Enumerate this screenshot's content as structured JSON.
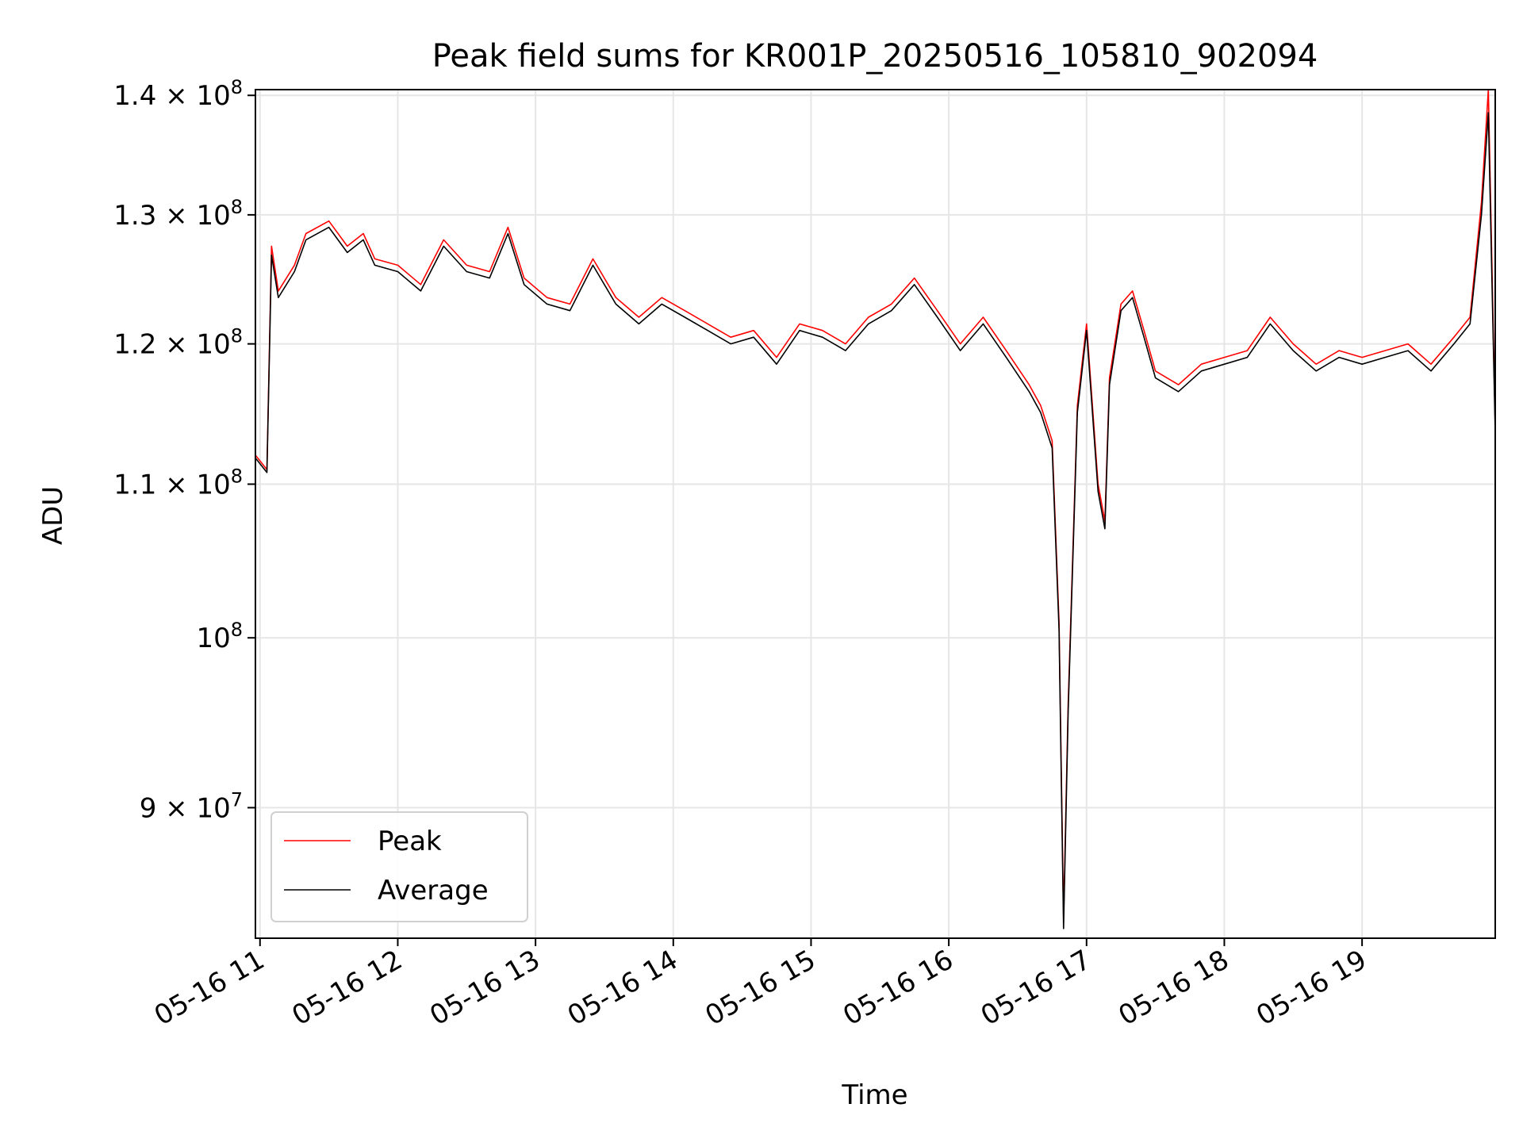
{
  "chart_data": {
    "type": "line",
    "title": "Peak field sums for KR001P_20250516_105810_902094",
    "xlabel": "Time",
    "ylabel": "ADU",
    "yscale": "log",
    "xlim": [
      "2025-05-16T10:58:00",
      "2025-05-16T19:58:00"
    ],
    "ylim": [
      83000000,
      140500000
    ],
    "x_ticks": [
      "05-16 11",
      "05-16 12",
      "05-16 13",
      "05-16 14",
      "05-16 15",
      "05-16 16",
      "05-16 17",
      "05-16 18",
      "05-16 19"
    ],
    "y_ticks": [
      {
        "value": 90000000,
        "mant": "9",
        "sep": " × ",
        "exp": "7"
      },
      {
        "value": 100000000,
        "mant": "",
        "sep": "",
        "exp": "8"
      },
      {
        "value": 110000000,
        "mant": "1.1",
        "sep": " × ",
        "exp": "8"
      },
      {
        "value": 120000000,
        "mant": "1.2",
        "sep": " × ",
        "exp": "8"
      },
      {
        "value": 130000000,
        "mant": "1.3",
        "sep": " × ",
        "exp": "8"
      },
      {
        "value": 140000000,
        "mant": "1.4",
        "sep": " × ",
        "exp": "8"
      }
    ],
    "grid": true,
    "legend_position": "lower-left",
    "series": [
      {
        "name": "Peak",
        "color": "#ff0000",
        "x": [
          "2025-05-16T10:58:00",
          "2025-05-16T11:03:00",
          "2025-05-16T11:05:00",
          "2025-05-16T11:08:00",
          "2025-05-16T11:15:00",
          "2025-05-16T11:20:00",
          "2025-05-16T11:30:00",
          "2025-05-16T11:38:00",
          "2025-05-16T11:45:00",
          "2025-05-16T11:50:00",
          "2025-05-16T12:00:00",
          "2025-05-16T12:10:00",
          "2025-05-16T12:20:00",
          "2025-05-16T12:30:00",
          "2025-05-16T12:40:00",
          "2025-05-16T12:48:00",
          "2025-05-16T12:55:00",
          "2025-05-16T13:05:00",
          "2025-05-16T13:15:00",
          "2025-05-16T13:25:00",
          "2025-05-16T13:35:00",
          "2025-05-16T13:45:00",
          "2025-05-16T13:55:00",
          "2025-05-16T14:05:00",
          "2025-05-16T14:15:00",
          "2025-05-16T14:25:00",
          "2025-05-16T14:35:00",
          "2025-05-16T14:45:00",
          "2025-05-16T14:55:00",
          "2025-05-16T15:05:00",
          "2025-05-16T15:15:00",
          "2025-05-16T15:25:00",
          "2025-05-16T15:35:00",
          "2025-05-16T15:45:00",
          "2025-05-16T15:55:00",
          "2025-05-16T16:05:00",
          "2025-05-16T16:15:00",
          "2025-05-16T16:25:00",
          "2025-05-16T16:35:00",
          "2025-05-16T16:40:00",
          "2025-05-16T16:45:00",
          "2025-05-16T16:48:00",
          "2025-05-16T16:50:00",
          "2025-05-16T16:52:00",
          "2025-05-16T16:56:00",
          "2025-05-16T17:00:00",
          "2025-05-16T17:05:00",
          "2025-05-16T17:08:00",
          "2025-05-16T17:10:00",
          "2025-05-16T17:15:00",
          "2025-05-16T17:20:00",
          "2025-05-16T17:25:00",
          "2025-05-16T17:30:00",
          "2025-05-16T17:40:00",
          "2025-05-16T17:50:00",
          "2025-05-16T18:00:00",
          "2025-05-16T18:10:00",
          "2025-05-16T18:20:00",
          "2025-05-16T18:30:00",
          "2025-05-16T18:40:00",
          "2025-05-16T18:50:00",
          "2025-05-16T19:00:00",
          "2025-05-16T19:10:00",
          "2025-05-16T19:20:00",
          "2025-05-16T19:30:00",
          "2025-05-16T19:40:00",
          "2025-05-16T19:47:00",
          "2025-05-16T19:52:00",
          "2025-05-16T19:55:00",
          "2025-05-16T19:58:00"
        ],
        "y": [
          112000000,
          111000000,
          127500000,
          124000000,
          126000000,
          128500000,
          129500000,
          127500000,
          128500000,
          126500000,
          126000000,
          124500000,
          128000000,
          126000000,
          125500000,
          129000000,
          125000000,
          123500000,
          123000000,
          126500000,
          123500000,
          122000000,
          123500000,
          122500000,
          121500000,
          120500000,
          121000000,
          119000000,
          121500000,
          121000000,
          120000000,
          122000000,
          123000000,
          125000000,
          122500000,
          120000000,
          122000000,
          119500000,
          117000000,
          115500000,
          113000000,
          101000000,
          84000000,
          96000000,
          115500000,
          121500000,
          110000000,
          107500000,
          117500000,
          123000000,
          124000000,
          121000000,
          118000000,
          117000000,
          118500000,
          119000000,
          119500000,
          122000000,
          120000000,
          118500000,
          119500000,
          119000000,
          119500000,
          120000000,
          118500000,
          120500000,
          122000000,
          131000000,
          140500000,
          114000000
        ]
      },
      {
        "name": "Average",
        "color": "#000000",
        "x": [
          "2025-05-16T10:58:00",
          "2025-05-16T11:03:00",
          "2025-05-16T11:05:00",
          "2025-05-16T11:08:00",
          "2025-05-16T11:15:00",
          "2025-05-16T11:20:00",
          "2025-05-16T11:30:00",
          "2025-05-16T11:38:00",
          "2025-05-16T11:45:00",
          "2025-05-16T11:50:00",
          "2025-05-16T12:00:00",
          "2025-05-16T12:10:00",
          "2025-05-16T12:20:00",
          "2025-05-16T12:30:00",
          "2025-05-16T12:40:00",
          "2025-05-16T12:48:00",
          "2025-05-16T12:55:00",
          "2025-05-16T13:05:00",
          "2025-05-16T13:15:00",
          "2025-05-16T13:25:00",
          "2025-05-16T13:35:00",
          "2025-05-16T13:45:00",
          "2025-05-16T13:55:00",
          "2025-05-16T14:05:00",
          "2025-05-16T14:15:00",
          "2025-05-16T14:25:00",
          "2025-05-16T14:35:00",
          "2025-05-16T14:45:00",
          "2025-05-16T14:55:00",
          "2025-05-16T15:05:00",
          "2025-05-16T15:15:00",
          "2025-05-16T15:25:00",
          "2025-05-16T15:35:00",
          "2025-05-16T15:45:00",
          "2025-05-16T15:55:00",
          "2025-05-16T16:05:00",
          "2025-05-16T16:15:00",
          "2025-05-16T16:25:00",
          "2025-05-16T16:35:00",
          "2025-05-16T16:40:00",
          "2025-05-16T16:45:00",
          "2025-05-16T16:48:00",
          "2025-05-16T16:50:00",
          "2025-05-16T16:52:00",
          "2025-05-16T16:56:00",
          "2025-05-16T17:00:00",
          "2025-05-16T17:05:00",
          "2025-05-16T17:08:00",
          "2025-05-16T17:10:00",
          "2025-05-16T17:15:00",
          "2025-05-16T17:20:00",
          "2025-05-16T17:25:00",
          "2025-05-16T17:30:00",
          "2025-05-16T17:40:00",
          "2025-05-16T17:50:00",
          "2025-05-16T18:00:00",
          "2025-05-16T18:10:00",
          "2025-05-16T18:20:00",
          "2025-05-16T18:30:00",
          "2025-05-16T18:40:00",
          "2025-05-16T18:50:00",
          "2025-05-16T19:00:00",
          "2025-05-16T19:10:00",
          "2025-05-16T19:20:00",
          "2025-05-16T19:30:00",
          "2025-05-16T19:40:00",
          "2025-05-16T19:47:00",
          "2025-05-16T19:52:00",
          "2025-05-16T19:55:00",
          "2025-05-16T19:58:00"
        ],
        "y": [
          111800000,
          110800000,
          126800000,
          123500000,
          125500000,
          128000000,
          129000000,
          127000000,
          128000000,
          126000000,
          125500000,
          124000000,
          127500000,
          125500000,
          125000000,
          128500000,
          124500000,
          123000000,
          122500000,
          126000000,
          123000000,
          121500000,
          123000000,
          122000000,
          121000000,
          120000000,
          120500000,
          118500000,
          121000000,
          120500000,
          119500000,
          121500000,
          122500000,
          124500000,
          122000000,
          119500000,
          121500000,
          119000000,
          116500000,
          115000000,
          112500000,
          100500000,
          83500000,
          95500000,
          115000000,
          121000000,
          109500000,
          107000000,
          117000000,
          122500000,
          123500000,
          120500000,
          117500000,
          116500000,
          118000000,
          118500000,
          119000000,
          121500000,
          119500000,
          118000000,
          119000000,
          118500000,
          119000000,
          119500000,
          118000000,
          120000000,
          121500000,
          130000000,
          138500000,
          113500000
        ]
      }
    ]
  }
}
